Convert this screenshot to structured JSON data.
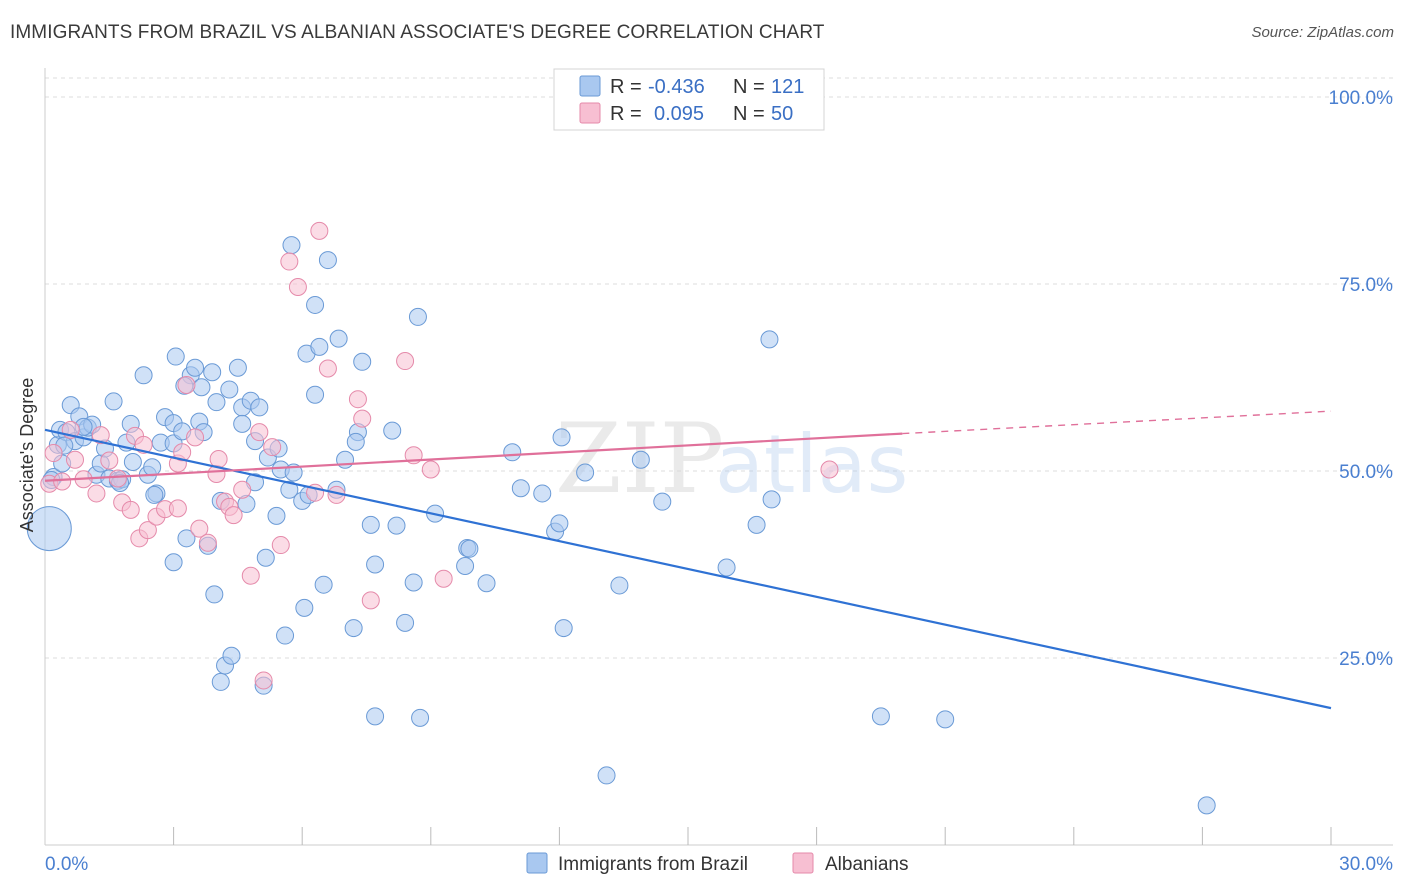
{
  "title": "IMMIGRANTS FROM BRAZIL VS ALBANIAN ASSOCIATE'S DEGREE CORRELATION CHART",
  "source": "Source: ZipAtlas.com",
  "watermark": {
    "zip": "ZIP",
    "atlas": "atlas"
  },
  "legend": {
    "rows": [
      {
        "r_label": "R =",
        "r_value": "-0.436",
        "n_label": "N =",
        "n_value": "121",
        "color": "#a9c8f0",
        "stroke": "#6a9ad6"
      },
      {
        "r_label": "R =",
        "r_value": "0.095",
        "n_label": "N =",
        "n_value": "50",
        "color": "#f7bfd2",
        "stroke": "#e58aaa"
      }
    ]
  },
  "bottom_legend": [
    {
      "label": "Immigrants from Brazil",
      "color": "#a9c8f0",
      "stroke": "#6a9ad6"
    },
    {
      "label": "Albanians",
      "color": "#f7bfd2",
      "stroke": "#e58aaa"
    }
  ],
  "chart_data": {
    "type": "scatter",
    "title": "IMMIGRANTS FROM BRAZIL VS ALBANIAN ASSOCIATE'S DEGREE CORRELATION CHART",
    "xlabel": "",
    "ylabel": "Associate's Degree",
    "xlim": [
      0,
      30
    ],
    "ylim": [
      0,
      105
    ],
    "x_tick_labels": [
      {
        "value": 0,
        "label": "0.0%"
      },
      {
        "value": 30,
        "label": "30.0%"
      }
    ],
    "y_tick_labels": [
      {
        "value": 25,
        "label": "25.0%"
      },
      {
        "value": 50,
        "label": "50.0%"
      },
      {
        "value": 75,
        "label": "75.0%"
      },
      {
        "value": 100,
        "label": "100.0%"
      }
    ],
    "grid": true,
    "series": [
      {
        "name": "Immigrants from Brazil",
        "color": "#a9c8f0",
        "stroke": "#6a9ad6",
        "trend": {
          "x": [
            0,
            30
          ],
          "y": [
            55.5,
            18.3
          ],
          "color": "#2f72d4"
        },
        "points": [
          [
            0.1,
            42.3
          ],
          [
            0.2,
            49.2
          ],
          [
            0.3,
            53.5
          ],
          [
            0.35,
            55.5
          ],
          [
            0.4,
            51
          ],
          [
            0.5,
            55.2
          ],
          [
            0.6,
            58.8
          ],
          [
            0.7,
            54
          ],
          [
            0.8,
            57.3
          ],
          [
            0.9,
            54.5
          ],
          [
            1.0,
            55.8
          ],
          [
            1.1,
            56.2
          ],
          [
            1.2,
            49.5
          ],
          [
            1.3,
            51
          ],
          [
            1.4,
            53
          ],
          [
            1.5,
            49
          ],
          [
            1.6,
            59.3
          ],
          [
            1.7,
            48.7
          ],
          [
            1.8,
            48.9
          ],
          [
            1.9,
            53.8
          ],
          [
            2.0,
            56.3
          ],
          [
            2.05,
            51.2
          ],
          [
            2.3,
            62.8
          ],
          [
            2.4,
            49.5
          ],
          [
            2.5,
            50.5
          ],
          [
            2.6,
            47
          ],
          [
            2.7,
            53.8
          ],
          [
            2.8,
            57.2
          ],
          [
            3.0,
            56.4
          ],
          [
            3.0,
            53.7
          ],
          [
            3.0,
            37.8
          ],
          [
            3.05,
            65.3
          ],
          [
            3.2,
            55.3
          ],
          [
            3.3,
            41
          ],
          [
            3.4,
            62.8
          ],
          [
            3.5,
            63.8
          ],
          [
            3.6,
            56.6
          ],
          [
            3.65,
            61.2
          ],
          [
            3.7,
            55.2
          ],
          [
            3.8,
            40
          ],
          [
            3.9,
            63.2
          ],
          [
            3.95,
            33.5
          ],
          [
            4.1,
            46
          ],
          [
            4.1,
            21.8
          ],
          [
            4.2,
            24
          ],
          [
            4.3,
            60.9
          ],
          [
            4.35,
            25.3
          ],
          [
            4.5,
            63.8
          ],
          [
            4.6,
            58.5
          ],
          [
            4.6,
            56.3
          ],
          [
            4.7,
            45.6
          ],
          [
            4.8,
            59.4
          ],
          [
            4.9,
            54
          ],
          [
            4.9,
            48.5
          ],
          [
            5.0,
            58.5
          ],
          [
            5.1,
            21.3
          ],
          [
            5.15,
            38.4
          ],
          [
            5.2,
            51.8
          ],
          [
            5.4,
            44
          ],
          [
            5.45,
            53
          ],
          [
            5.5,
            50.2
          ],
          [
            5.6,
            28
          ],
          [
            5.7,
            47.5
          ],
          [
            5.75,
            80.2
          ],
          [
            5.8,
            49.8
          ],
          [
            6.0,
            46
          ],
          [
            6.05,
            31.7
          ],
          [
            6.1,
            65.7
          ],
          [
            6.3,
            72.2
          ],
          [
            6.3,
            60.2
          ],
          [
            6.4,
            66.6
          ],
          [
            6.5,
            34.8
          ],
          [
            6.6,
            78.2
          ],
          [
            6.8,
            47.5
          ],
          [
            6.85,
            67.7
          ],
          [
            7.0,
            51.5
          ],
          [
            7.2,
            29
          ],
          [
            7.3,
            55.2
          ],
          [
            7.4,
            64.6
          ],
          [
            7.6,
            42.8
          ],
          [
            7.7,
            37.5
          ],
          [
            7.7,
            17.2
          ],
          [
            8.1,
            55.4
          ],
          [
            8.2,
            42.7
          ],
          [
            8.4,
            29.7
          ],
          [
            8.6,
            35.1
          ],
          [
            8.7,
            70.6
          ],
          [
            8.75,
            17
          ],
          [
            9.1,
            44.3
          ],
          [
            9.8,
            37.3
          ],
          [
            9.85,
            39.7
          ],
          [
            9.9,
            39.6
          ],
          [
            10.3,
            35
          ],
          [
            10.9,
            52.5
          ],
          [
            11.1,
            47.7
          ],
          [
            11.6,
            47
          ],
          [
            11.9,
            41.9
          ],
          [
            12.0,
            43
          ],
          [
            12.05,
            54.5
          ],
          [
            12.1,
            29
          ],
          [
            12.6,
            49.8
          ],
          [
            13.1,
            9.3
          ],
          [
            13.4,
            34.7
          ],
          [
            13.9,
            51.5
          ],
          [
            14.4,
            45.9
          ],
          [
            15.9,
            37.1
          ],
          [
            16.6,
            42.8
          ],
          [
            16.9,
            67.6
          ],
          [
            16.95,
            46.2
          ],
          [
            19.5,
            17.2
          ],
          [
            21.0,
            16.8
          ],
          [
            27.1,
            5.3
          ],
          [
            0.15,
            48.8
          ],
          [
            0.45,
            53.4
          ],
          [
            0.9,
            55.9
          ],
          [
            1.75,
            48.4
          ],
          [
            2.55,
            46.8
          ],
          [
            3.25,
            61.4
          ],
          [
            4.0,
            59.2
          ],
          [
            6.15,
            46.8
          ],
          [
            7.25,
            53.9
          ]
        ]
      },
      {
        "name": "Albanians",
        "color": "#f7bfd2",
        "stroke": "#e58aaa",
        "trend": {
          "x": [
            0,
            20
          ],
          "y": [
            48.7,
            55
          ],
          "dashed_to": [
            30,
            58
          ],
          "color": "#e0709a"
        },
        "points": [
          [
            0.1,
            48.3
          ],
          [
            0.2,
            52.4
          ],
          [
            0.4,
            48.6
          ],
          [
            0.6,
            55.5
          ],
          [
            0.7,
            51.5
          ],
          [
            0.9,
            48.9
          ],
          [
            1.2,
            47
          ],
          [
            1.3,
            54.8
          ],
          [
            1.5,
            51.4
          ],
          [
            1.7,
            49
          ],
          [
            1.8,
            45.8
          ],
          [
            2.0,
            44.8
          ],
          [
            2.1,
            54.7
          ],
          [
            2.2,
            41
          ],
          [
            2.3,
            53.5
          ],
          [
            2.4,
            42.1
          ],
          [
            2.6,
            43.9
          ],
          [
            2.8,
            44.9
          ],
          [
            3.1,
            45
          ],
          [
            3.1,
            51
          ],
          [
            3.2,
            52.5
          ],
          [
            3.3,
            61.5
          ],
          [
            3.5,
            54.5
          ],
          [
            3.6,
            42.3
          ],
          [
            3.8,
            40.4
          ],
          [
            4.0,
            49.6
          ],
          [
            4.05,
            51.6
          ],
          [
            4.2,
            45.9
          ],
          [
            4.3,
            45.2
          ],
          [
            4.4,
            44.1
          ],
          [
            4.6,
            47.5
          ],
          [
            4.8,
            36
          ],
          [
            5.0,
            55.2
          ],
          [
            5.1,
            22
          ],
          [
            5.3,
            53.2
          ],
          [
            5.5,
            40.1
          ],
          [
            5.7,
            78
          ],
          [
            5.9,
            74.6
          ],
          [
            6.3,
            47.1
          ],
          [
            6.4,
            82.1
          ],
          [
            6.6,
            63.7
          ],
          [
            6.8,
            46.8
          ],
          [
            7.3,
            59.6
          ],
          [
            7.4,
            57
          ],
          [
            7.6,
            32.7
          ],
          [
            8.4,
            64.7
          ],
          [
            8.6,
            52.1
          ],
          [
            9.0,
            50.2
          ],
          [
            9.3,
            35.6
          ],
          [
            18.3,
            50.2
          ]
        ]
      }
    ]
  }
}
